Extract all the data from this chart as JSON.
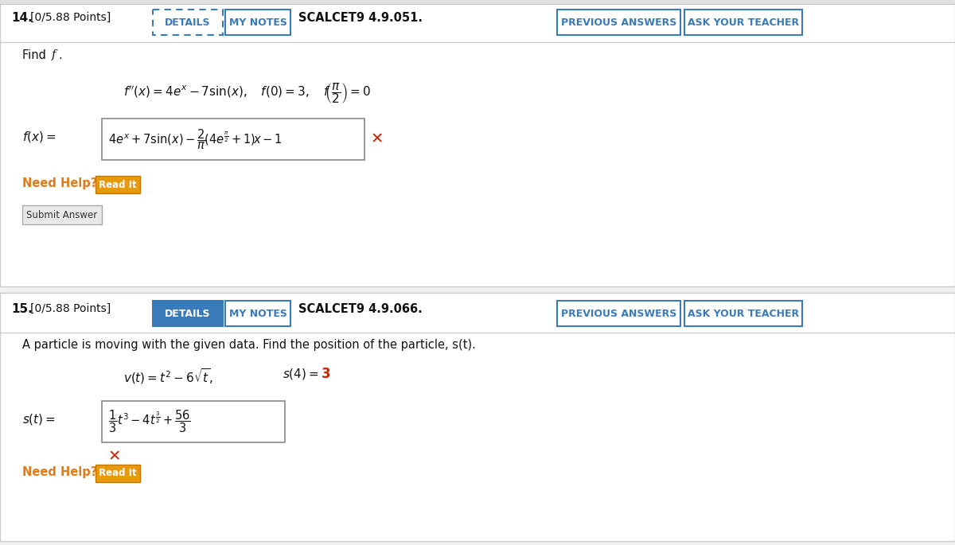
{
  "bg_top_strip": "#e8edf2",
  "bg_color": "#f0f0f0",
  "panel_bg": "#ffffff",
  "border_color": "#cccccc",
  "dark_border": "#aaaaaa",
  "orange_color": "#e07b18",
  "blue_btn_color": "#3a7ab8",
  "blue_btn_fill": "#3a7ab8",
  "red_color": "#cc2200",
  "gray_btn_bg": "#e0e0e0",
  "gray_text": "#444444",
  "black_text": "#111111",
  "problem14_num": "14.",
  "problem14_points": "[0/5.88 Points]",
  "details_btn": "DETAILS",
  "my_notes_btn": "MY NOTES",
  "problem14_code": "SCALCET9 4.9.051.",
  "prev_answers_btn": "PREVIOUS ANSWERS",
  "ask_teacher_btn": "ASK YOUR TEACHER",
  "need_help": "Need Help?",
  "read_it": "Read It",
  "submit_answer": "Submit Answer",
  "problem15_num": "15.",
  "problem15_points": "[0/5.88 Points]",
  "problem15_code": "SCALCET9 4.9.066.",
  "problem15_desc": "A particle is moving with the given data. Find the position of the particle, s(t)."
}
